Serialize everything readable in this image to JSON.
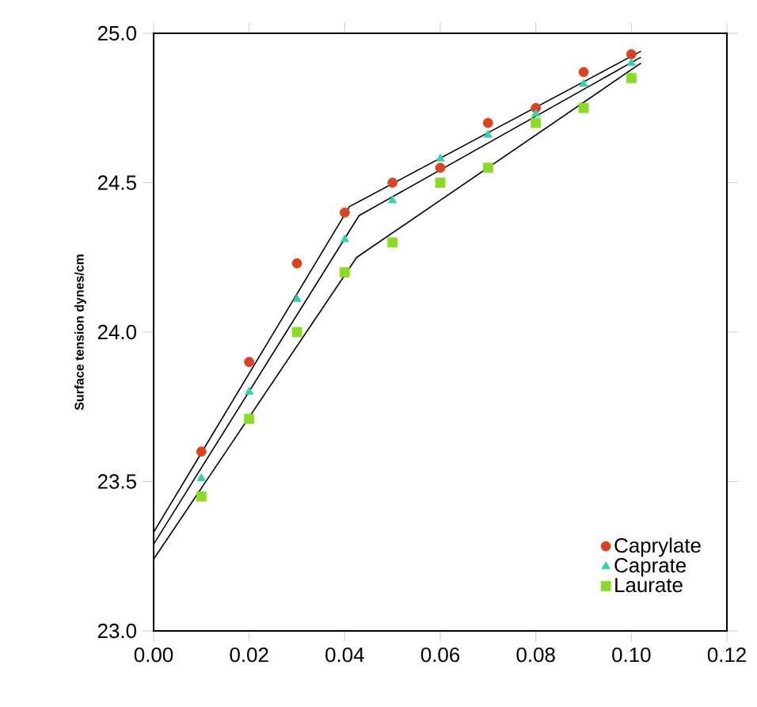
{
  "chart_data": {
    "type": "scatter",
    "ylabel": "Surface tension dynes/cm",
    "xlim": [
      0,
      0.12
    ],
    "ylim": [
      23.0,
      25.0
    ],
    "xticks": [
      {
        "value": 0,
        "label": "0.00"
      },
      {
        "value": 0.02,
        "label": "0.02"
      },
      {
        "value": 0.04,
        "label": "0.04"
      },
      {
        "value": 0.06,
        "label": "0.06"
      },
      {
        "value": 0.08,
        "label": "0.08"
      },
      {
        "value": 0.1,
        "label": "0.10"
      },
      {
        "value": 0.12,
        "label": "0.12"
      }
    ],
    "yticks": [
      {
        "value": 23,
        "label": "23.0"
      },
      {
        "value": 23.5,
        "label": "23.5"
      },
      {
        "value": 24,
        "label": "24.0"
      },
      {
        "value": 24.5,
        "label": "24.5"
      },
      {
        "value": 25,
        "label": "25.0"
      }
    ],
    "grid": false,
    "legend": "bottom right",
    "series": [
      {
        "name": "Caprylate",
        "color": "#e0401c",
        "marker": "circle",
        "x": [
          0.01,
          0.02,
          0.03,
          0.04,
          0.05,
          0.06,
          0.07,
          0.08,
          0.09,
          0.1
        ],
        "values": [
          23.6,
          23.9,
          24.23,
          24.4,
          24.5,
          24.55,
          24.7,
          24.75,
          24.87,
          24.93
        ]
      },
      {
        "name": "Caprate",
        "color": "#2ed3b0",
        "marker": "triangle",
        "x": [
          0.01,
          0.02,
          0.03,
          0.04,
          0.05,
          0.06,
          0.07,
          0.08,
          0.09,
          0.1
        ],
        "values": [
          23.51,
          23.8,
          24.11,
          24.31,
          24.44,
          24.58,
          24.66,
          24.73,
          24.83,
          24.9
        ]
      },
      {
        "name": "Laurate",
        "color": "#88dd22",
        "marker": "square",
        "x": [
          0.01,
          0.02,
          0.03,
          0.04,
          0.05,
          0.06,
          0.07,
          0.08,
          0.09,
          0.1
        ],
        "values": [
          23.45,
          23.71,
          24.0,
          24.2,
          24.3,
          24.5,
          24.55,
          24.7,
          24.75,
          24.85
        ]
      },
      {
        "type": "line",
        "color": "#000000",
        "marker": "none",
        "x": [
          0,
          0.041,
          0.102
        ],
        "values": [
          23.33,
          24.42,
          24.94
        ]
      },
      {
        "type": "line",
        "color": "#000000",
        "marker": "none",
        "x": [
          0,
          0.043,
          0.102
        ],
        "values": [
          23.29,
          24.39,
          24.92
        ]
      },
      {
        "type": "line",
        "color": "#000000",
        "marker": "none",
        "x": [
          0,
          0.0425,
          0.102
        ],
        "values": [
          23.24,
          24.25,
          24.9
        ]
      }
    ]
  }
}
